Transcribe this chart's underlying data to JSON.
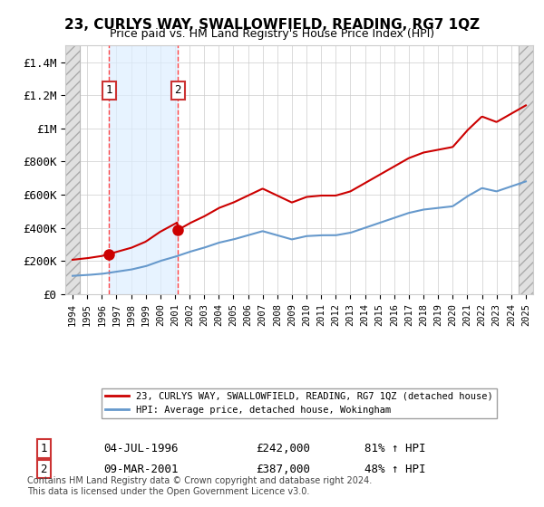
{
  "title": "23, CURLYS WAY, SWALLOWFIELD, READING, RG7 1QZ",
  "subtitle": "Price paid vs. HM Land Registry's House Price Index (HPI)",
  "legend_line1": "23, CURLYS WAY, SWALLOWFIELD, READING, RG7 1QZ (detached house)",
  "legend_line2": "HPI: Average price, detached house, Wokingham",
  "transaction1_date": "04-JUL-1996",
  "transaction1_price": 242000,
  "transaction1_pct": "81% ↑ HPI",
  "transaction2_date": "09-MAR-2001",
  "transaction2_price": 387000,
  "transaction2_pct": "48% ↑ HPI",
  "footer": "Contains HM Land Registry data © Crown copyright and database right 2024.\nThis data is licensed under the Open Government Licence v3.0.",
  "dashed_line_color": "#ff4444",
  "red_line_color": "#cc0000",
  "blue_line_color": "#6699cc",
  "transaction1_x": 1996.5,
  "transaction2_x": 2001.2,
  "ylim_max": 1500000,
  "xmin": 1993.5,
  "xmax": 2025.5,
  "hatch_end": 1994.5,
  "hatch_start2": 2024.5,
  "yticks": [
    0,
    200000,
    400000,
    600000,
    800000,
    1000000,
    1200000,
    1400000
  ],
  "ytick_labels": [
    "£0",
    "£200K",
    "£400K",
    "£600K",
    "£800K",
    "£1M",
    "£1.2M",
    "£1.4M"
  ],
  "xticks": [
    1994,
    1995,
    1996,
    1997,
    1998,
    1999,
    2000,
    2001,
    2002,
    2003,
    2004,
    2005,
    2006,
    2007,
    2008,
    2009,
    2010,
    2011,
    2012,
    2013,
    2014,
    2015,
    2016,
    2017,
    2018,
    2019,
    2020,
    2021,
    2022,
    2023,
    2024,
    2025
  ],
  "years_hpi": [
    1994,
    1995,
    1996,
    1997,
    1998,
    1999,
    2000,
    2001,
    2002,
    2003,
    2004,
    2005,
    2006,
    2007,
    2008,
    2009,
    2010,
    2011,
    2012,
    2013,
    2014,
    2015,
    2016,
    2017,
    2018,
    2019,
    2020,
    2021,
    2022,
    2023,
    2024,
    2025
  ],
  "hpi_values": [
    110000,
    115000,
    122000,
    135000,
    148000,
    168000,
    200000,
    225000,
    255000,
    280000,
    310000,
    330000,
    355000,
    380000,
    355000,
    330000,
    350000,
    355000,
    355000,
    370000,
    400000,
    430000,
    460000,
    490000,
    510000,
    520000,
    530000,
    590000,
    640000,
    620000,
    650000,
    680000
  ]
}
